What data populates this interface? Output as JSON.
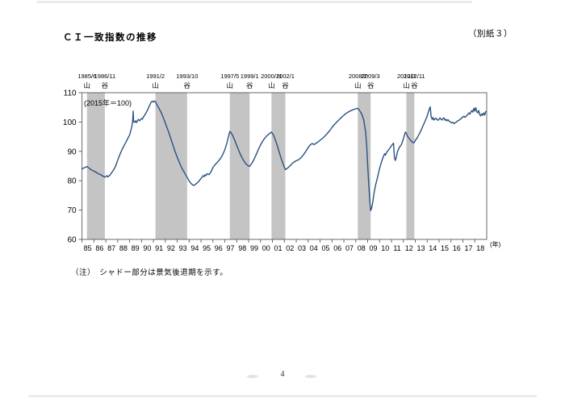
{
  "page": {
    "attachment_label": "（別紙３）",
    "title": "ＣＩ一致指数の推移",
    "note": "（注）　シャドー部分は景気後退期を示す。",
    "page_number": "4"
  },
  "chart_data": {
    "type": "line",
    "title": "ＣＩ一致指数の推移",
    "base_index_label": "(2015年＝100)",
    "year_unit_label": "(年)",
    "ylim": [
      60,
      110
    ],
    "yticks": [
      60,
      70,
      80,
      90,
      100,
      110
    ],
    "xlim": [
      1985.0,
      2019.0
    ],
    "xtick_labels": [
      "85",
      "86",
      "87",
      "88",
      "89",
      "90",
      "91",
      "92",
      "93",
      "94",
      "95",
      "96",
      "97",
      "98",
      "99",
      "00",
      "01",
      "02",
      "03",
      "04",
      "05",
      "06",
      "07",
      "08",
      "09",
      "10",
      "11",
      "12",
      "13",
      "14",
      "15",
      "16",
      "17",
      "18"
    ],
    "grid": false,
    "legend_position": "none",
    "line_color": "#2a5180",
    "recession_shade_color": "#c4c4c4",
    "frame_color": "#595959",
    "turning_points": [
      {
        "date": "1985/6",
        "type": "山",
        "year": 1985.42
      },
      {
        "date": "1986/11",
        "type": "谷",
        "year": 1986.92
      },
      {
        "date": "1991/2",
        "type": "山",
        "year": 1991.17
      },
      {
        "date": "1993/10",
        "type": "谷",
        "year": 1993.83
      },
      {
        "date": "1997/5",
        "type": "山",
        "year": 1997.42
      },
      {
        "date": "1999/1",
        "type": "谷",
        "year": 1999.08
      },
      {
        "date": "2000/11",
        "type": "山",
        "year": 2000.92
      },
      {
        "date": "2002/1",
        "type": "谷",
        "year": 2002.08
      },
      {
        "date": "2008/2",
        "type": "山",
        "year": 2008.17
      },
      {
        "date": "2009/3",
        "type": "谷",
        "year": 2009.25
      },
      {
        "date": "2012/3",
        "type": "山",
        "year": 2012.25
      },
      {
        "date": "2012/11",
        "type": "谷",
        "year": 2012.92
      }
    ],
    "recessions": [
      [
        1985.42,
        1986.92
      ],
      [
        1991.17,
        1993.83
      ],
      [
        1997.42,
        1999.08
      ],
      [
        2000.92,
        2002.08
      ],
      [
        2008.17,
        2009.25
      ],
      [
        2012.25,
        2012.92
      ]
    ],
    "series": [
      {
        "name": "CI一致指数",
        "points": [
          [
            1985.0,
            84.0
          ],
          [
            1985.17,
            84.4
          ],
          [
            1985.33,
            84.7
          ],
          [
            1985.42,
            84.8
          ],
          [
            1985.58,
            84.3
          ],
          [
            1985.75,
            83.8
          ],
          [
            1985.92,
            83.4
          ],
          [
            1986.08,
            83.1
          ],
          [
            1986.25,
            82.7
          ],
          [
            1986.42,
            82.3
          ],
          [
            1986.58,
            82.0
          ],
          [
            1986.75,
            81.6
          ],
          [
            1986.92,
            81.2
          ],
          [
            1987.08,
            81.7
          ],
          [
            1987.17,
            81.3
          ],
          [
            1987.33,
            81.9
          ],
          [
            1987.5,
            82.8
          ],
          [
            1987.67,
            83.8
          ],
          [
            1987.83,
            85.0
          ],
          [
            1988.0,
            87.0
          ],
          [
            1988.17,
            88.8
          ],
          [
            1988.33,
            90.3
          ],
          [
            1988.5,
            91.7
          ],
          [
            1988.67,
            93.0
          ],
          [
            1988.83,
            94.3
          ],
          [
            1989.0,
            95.6
          ],
          [
            1989.08,
            96.8
          ],
          [
            1989.17,
            98.2
          ],
          [
            1989.25,
            100.0
          ],
          [
            1989.3,
            103.7
          ],
          [
            1989.33,
            100.2
          ],
          [
            1989.42,
            99.9
          ],
          [
            1989.5,
            100.4
          ],
          [
            1989.58,
            99.8
          ],
          [
            1989.67,
            100.6
          ],
          [
            1989.75,
            100.9
          ],
          [
            1989.83,
            100.4
          ],
          [
            1989.92,
            100.8
          ],
          [
            1990.0,
            101.2
          ],
          [
            1990.08,
            101.0
          ],
          [
            1990.17,
            101.8
          ],
          [
            1990.25,
            102.2
          ],
          [
            1990.33,
            102.8
          ],
          [
            1990.42,
            103.4
          ],
          [
            1990.5,
            104.0
          ],
          [
            1990.58,
            104.8
          ],
          [
            1990.67,
            105.6
          ],
          [
            1990.75,
            106.3
          ],
          [
            1990.83,
            106.9
          ],
          [
            1990.92,
            107.1
          ],
          [
            1991.0,
            106.8
          ],
          [
            1991.08,
            107.2
          ],
          [
            1991.17,
            106.9
          ],
          [
            1991.25,
            106.2
          ],
          [
            1991.33,
            105.6
          ],
          [
            1991.42,
            105.0
          ],
          [
            1991.5,
            104.4
          ],
          [
            1991.58,
            103.8
          ],
          [
            1991.67,
            103.1
          ],
          [
            1991.75,
            102.3
          ],
          [
            1991.83,
            101.5
          ],
          [
            1991.92,
            100.6
          ],
          [
            1992.0,
            99.6
          ],
          [
            1992.17,
            97.8
          ],
          [
            1992.33,
            96.0
          ],
          [
            1992.5,
            93.9
          ],
          [
            1992.67,
            91.8
          ],
          [
            1992.83,
            89.8
          ],
          [
            1993.0,
            88.0
          ],
          [
            1993.17,
            86.3
          ],
          [
            1993.33,
            84.8
          ],
          [
            1993.5,
            83.5
          ],
          [
            1993.67,
            82.3
          ],
          [
            1993.83,
            81.2
          ],
          [
            1994.0,
            79.9
          ],
          [
            1994.17,
            79.0
          ],
          [
            1994.33,
            78.5
          ],
          [
            1994.42,
            78.4
          ],
          [
            1994.5,
            78.7
          ],
          [
            1994.67,
            79.2
          ],
          [
            1994.83,
            79.9
          ],
          [
            1995.0,
            80.8
          ],
          [
            1995.17,
            81.7
          ],
          [
            1995.25,
            81.4
          ],
          [
            1995.33,
            82.0
          ],
          [
            1995.42,
            81.7
          ],
          [
            1995.5,
            82.4
          ],
          [
            1995.67,
            82.1
          ],
          [
            1995.83,
            83.0
          ],
          [
            1996.0,
            84.5
          ],
          [
            1996.17,
            85.4
          ],
          [
            1996.33,
            86.1
          ],
          [
            1996.5,
            86.9
          ],
          [
            1996.67,
            87.8
          ],
          [
            1996.83,
            89.0
          ],
          [
            1997.0,
            90.6
          ],
          [
            1997.17,
            92.8
          ],
          [
            1997.33,
            95.5
          ],
          [
            1997.42,
            96.8
          ],
          [
            1997.5,
            96.5
          ],
          [
            1997.58,
            96.0
          ],
          [
            1997.67,
            95.3
          ],
          [
            1997.83,
            93.8
          ],
          [
            1998.0,
            92.0
          ],
          [
            1998.17,
            90.3
          ],
          [
            1998.33,
            88.8
          ],
          [
            1998.5,
            87.4
          ],
          [
            1998.67,
            86.3
          ],
          [
            1998.83,
            85.5
          ],
          [
            1999.0,
            85.0
          ],
          [
            1999.08,
            84.9
          ],
          [
            1999.17,
            85.4
          ],
          [
            1999.33,
            86.3
          ],
          [
            1999.5,
            87.7
          ],
          [
            1999.67,
            89.2
          ],
          [
            1999.83,
            90.8
          ],
          [
            2000.0,
            92.2
          ],
          [
            2000.17,
            93.4
          ],
          [
            2000.33,
            94.4
          ],
          [
            2000.5,
            95.2
          ],
          [
            2000.67,
            95.8
          ],
          [
            2000.83,
            96.3
          ],
          [
            2000.92,
            96.6
          ],
          [
            2001.08,
            95.6
          ],
          [
            2001.25,
            93.9
          ],
          [
            2001.42,
            91.8
          ],
          [
            2001.58,
            89.6
          ],
          [
            2001.75,
            87.4
          ],
          [
            2001.92,
            85.4
          ],
          [
            2002.08,
            83.8
          ],
          [
            2002.17,
            84.0
          ],
          [
            2002.33,
            84.5
          ],
          [
            2002.5,
            85.2
          ],
          [
            2002.67,
            85.9
          ],
          [
            2002.83,
            86.4
          ],
          [
            2003.0,
            86.8
          ],
          [
            2003.17,
            87.1
          ],
          [
            2003.33,
            87.6
          ],
          [
            2003.5,
            88.3
          ],
          [
            2003.67,
            89.2
          ],
          [
            2003.83,
            90.2
          ],
          [
            2004.0,
            91.3
          ],
          [
            2004.17,
            92.2
          ],
          [
            2004.33,
            92.7
          ],
          [
            2004.5,
            92.3
          ],
          [
            2004.67,
            92.8
          ],
          [
            2004.83,
            93.2
          ],
          [
            2005.0,
            93.8
          ],
          [
            2005.17,
            94.3
          ],
          [
            2005.33,
            94.9
          ],
          [
            2005.5,
            95.6
          ],
          [
            2005.67,
            96.4
          ],
          [
            2005.83,
            97.2
          ],
          [
            2006.0,
            98.2
          ],
          [
            2006.17,
            99.0
          ],
          [
            2006.33,
            99.7
          ],
          [
            2006.5,
            100.4
          ],
          [
            2006.67,
            101.1
          ],
          [
            2006.83,
            101.7
          ],
          [
            2007.0,
            102.3
          ],
          [
            2007.17,
            102.9
          ],
          [
            2007.33,
            103.3
          ],
          [
            2007.5,
            103.7
          ],
          [
            2007.67,
            104.0
          ],
          [
            2007.83,
            104.3
          ],
          [
            2008.0,
            104.5
          ],
          [
            2008.17,
            104.7
          ],
          [
            2008.33,
            103.9
          ],
          [
            2008.5,
            102.7
          ],
          [
            2008.67,
            100.7
          ],
          [
            2008.83,
            96.5
          ],
          [
            2008.92,
            92.0
          ],
          [
            2009.0,
            85.5
          ],
          [
            2009.08,
            79.5
          ],
          [
            2009.17,
            73.8
          ],
          [
            2009.25,
            69.8
          ],
          [
            2009.33,
            70.6
          ],
          [
            2009.42,
            72.5
          ],
          [
            2009.5,
            74.8
          ],
          [
            2009.58,
            76.8
          ],
          [
            2009.67,
            78.6
          ],
          [
            2009.83,
            81.2
          ],
          [
            2010.0,
            84.2
          ],
          [
            2010.17,
            86.6
          ],
          [
            2010.33,
            88.3
          ],
          [
            2010.42,
            89.2
          ],
          [
            2010.5,
            88.7
          ],
          [
            2010.58,
            89.6
          ],
          [
            2010.67,
            90.1
          ],
          [
            2010.83,
            90.9
          ],
          [
            2011.0,
            91.9
          ],
          [
            2011.08,
            92.4
          ],
          [
            2011.17,
            92.8
          ],
          [
            2011.25,
            87.8
          ],
          [
            2011.33,
            86.9
          ],
          [
            2011.42,
            88.3
          ],
          [
            2011.5,
            89.9
          ],
          [
            2011.67,
            91.4
          ],
          [
            2011.83,
            92.3
          ],
          [
            2012.0,
            94.3
          ],
          [
            2012.08,
            95.5
          ],
          [
            2012.17,
            96.6
          ],
          [
            2012.25,
            96.1
          ],
          [
            2012.33,
            95.3
          ],
          [
            2012.5,
            94.3
          ],
          [
            2012.67,
            93.5
          ],
          [
            2012.83,
            92.9
          ],
          [
            2012.92,
            93.1
          ],
          [
            2013.0,
            93.7
          ],
          [
            2013.17,
            94.7
          ],
          [
            2013.33,
            95.9
          ],
          [
            2013.5,
            97.3
          ],
          [
            2013.67,
            98.9
          ],
          [
            2013.83,
            100.4
          ],
          [
            2014.0,
            102.1
          ],
          [
            2014.08,
            103.2
          ],
          [
            2014.17,
            104.3
          ],
          [
            2014.25,
            105.2
          ],
          [
            2014.33,
            101.9
          ],
          [
            2014.42,
            100.9
          ],
          [
            2014.5,
            101.5
          ],
          [
            2014.58,
            100.7
          ],
          [
            2014.67,
            101.1
          ],
          [
            2014.75,
            101.3
          ],
          [
            2014.83,
            100.8
          ],
          [
            2014.92,
            100.6
          ],
          [
            2015.0,
            101.0
          ],
          [
            2015.08,
            101.4
          ],
          [
            2015.17,
            100.9
          ],
          [
            2015.25,
            100.7
          ],
          [
            2015.33,
            101.2
          ],
          [
            2015.42,
            101.4
          ],
          [
            2015.5,
            100.6
          ],
          [
            2015.58,
            100.9
          ],
          [
            2015.67,
            100.4
          ],
          [
            2015.75,
            100.8
          ],
          [
            2015.83,
            100.3
          ],
          [
            2015.92,
            100.1
          ],
          [
            2016.0,
            99.9
          ],
          [
            2016.08,
            99.7
          ],
          [
            2016.17,
            99.9
          ],
          [
            2016.25,
            99.5
          ],
          [
            2016.33,
            99.7
          ],
          [
            2016.42,
            99.9
          ],
          [
            2016.5,
            100.2
          ],
          [
            2016.58,
            100.4
          ],
          [
            2016.67,
            100.6
          ],
          [
            2016.75,
            100.9
          ],
          [
            2016.83,
            101.1
          ],
          [
            2016.92,
            101.4
          ],
          [
            2017.0,
            101.7
          ],
          [
            2017.08,
            102.0
          ],
          [
            2017.17,
            101.6
          ],
          [
            2017.25,
            101.9
          ],
          [
            2017.33,
            102.2
          ],
          [
            2017.42,
            102.6
          ],
          [
            2017.5,
            103.1
          ],
          [
            2017.58,
            102.7
          ],
          [
            2017.67,
            103.4
          ],
          [
            2017.75,
            103.9
          ],
          [
            2017.83,
            103.4
          ],
          [
            2017.92,
            104.7
          ],
          [
            2018.0,
            103.7
          ],
          [
            2018.08,
            104.9
          ],
          [
            2018.17,
            103.5
          ],
          [
            2018.25,
            103.1
          ],
          [
            2018.33,
            103.9
          ],
          [
            2018.42,
            102.5
          ],
          [
            2018.5,
            102.1
          ],
          [
            2018.58,
            102.8
          ],
          [
            2018.67,
            102.3
          ],
          [
            2018.75,
            103.1
          ],
          [
            2018.83,
            102.4
          ],
          [
            2018.92,
            103.6
          ]
        ]
      }
    ]
  }
}
